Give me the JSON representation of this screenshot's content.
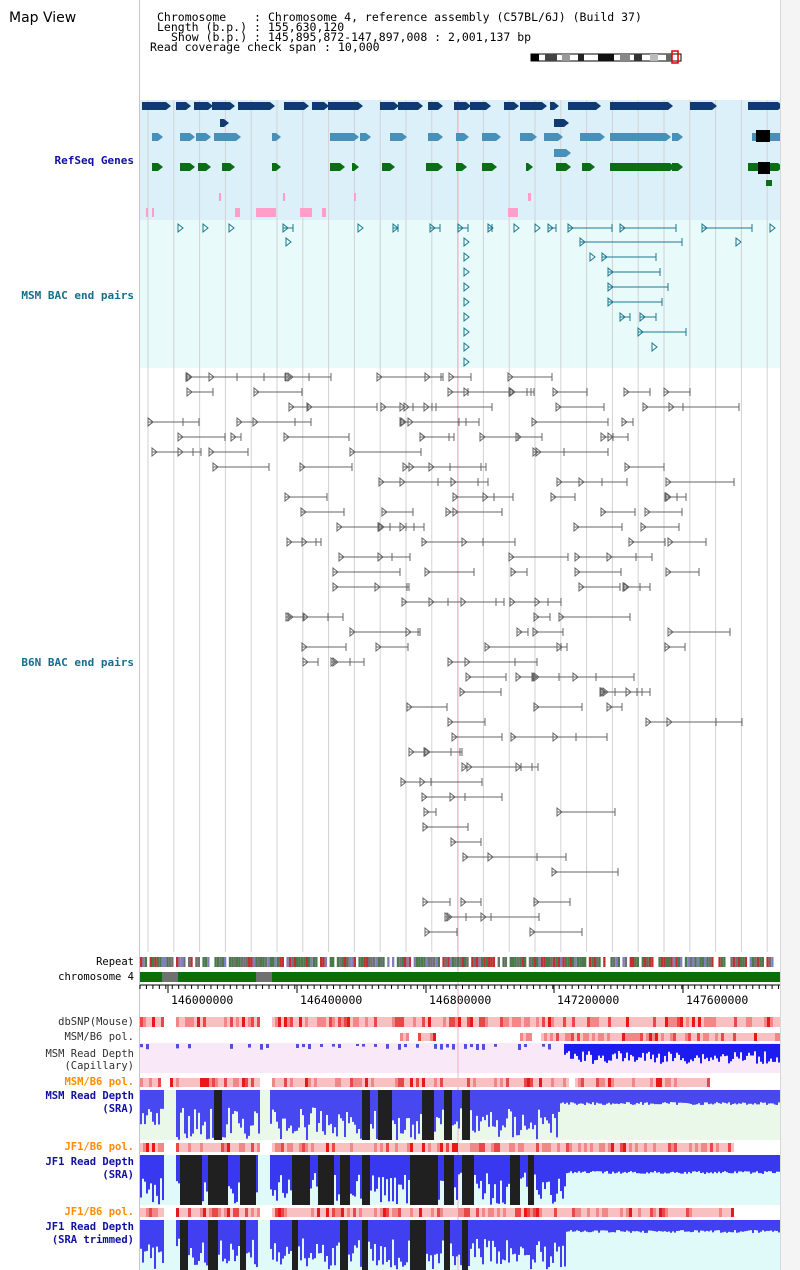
{
  "window": {
    "title": "Map View"
  },
  "header": {
    "chromosome_label": "Chromosome    ",
    "chromosome_value": "Chromosome 4, reference assembly (C57BL/6J) (Build 37)",
    "length_label": "Length (b.p.)",
    "length_value": "155,630,120",
    "show_label": "Show (b.p.)",
    "show_value": "145,895,872-147,897,008 : 2,001,137 bp",
    "coverage_label": "Read coverage check span",
    "coverage_value": "10,000"
  },
  "tracks": {
    "refseq": "RefSeq Genes",
    "msm_bac": "MSM BAC end pairs",
    "b6n_bac": "B6N BAC end pairs",
    "repeat": "Repeat",
    "chromosome": "chromosome 4",
    "dbsnp": "dbSNP(Mouse)",
    "msm_b6_pol_1": "MSM/B6 pol.",
    "msm_depth_cap_1": "MSM Read Depth",
    "msm_depth_cap_2": "(Capillary)",
    "msm_b6_pol_2": "MSM/B6 pol.",
    "msm_depth_sra_1": "MSM Read Depth",
    "msm_depth_sra_2": "(SRA)",
    "jf1_b6_pol_1": "JF1/B6 pol.",
    "jf1_depth_sra_1": "JF1 Read Depth",
    "jf1_depth_sra_2": "(SRA)",
    "jf1_b6_pol_2": "JF1/B6 pol.",
    "jf1_depth_trim_1": "JF1 Read Depth",
    "jf1_depth_trim_2": "(SRA trimmed)"
  },
  "axis": {
    "ticks": [
      "146000000",
      "146400000",
      "146800000",
      "147200000",
      "147600000"
    ]
  },
  "colors": {
    "refseq_bg": "#dcf0fa",
    "bac_bg": "#e8fafa",
    "gene_dark": "#103a70",
    "gene_mid": "#4890b8",
    "gene_green": "#0a6e14",
    "pink": "#ff9ec8",
    "chromosome": "#0a6e0a",
    "snp_light": "#f8c0c0",
    "snp_dark": "#e81818",
    "depth_blue": "#1c1cf0",
    "depth_black": "#202020",
    "label_blue": "#1010a0",
    "label_teal": "#146e8c",
    "label_orange": "#ff8c00"
  }
}
